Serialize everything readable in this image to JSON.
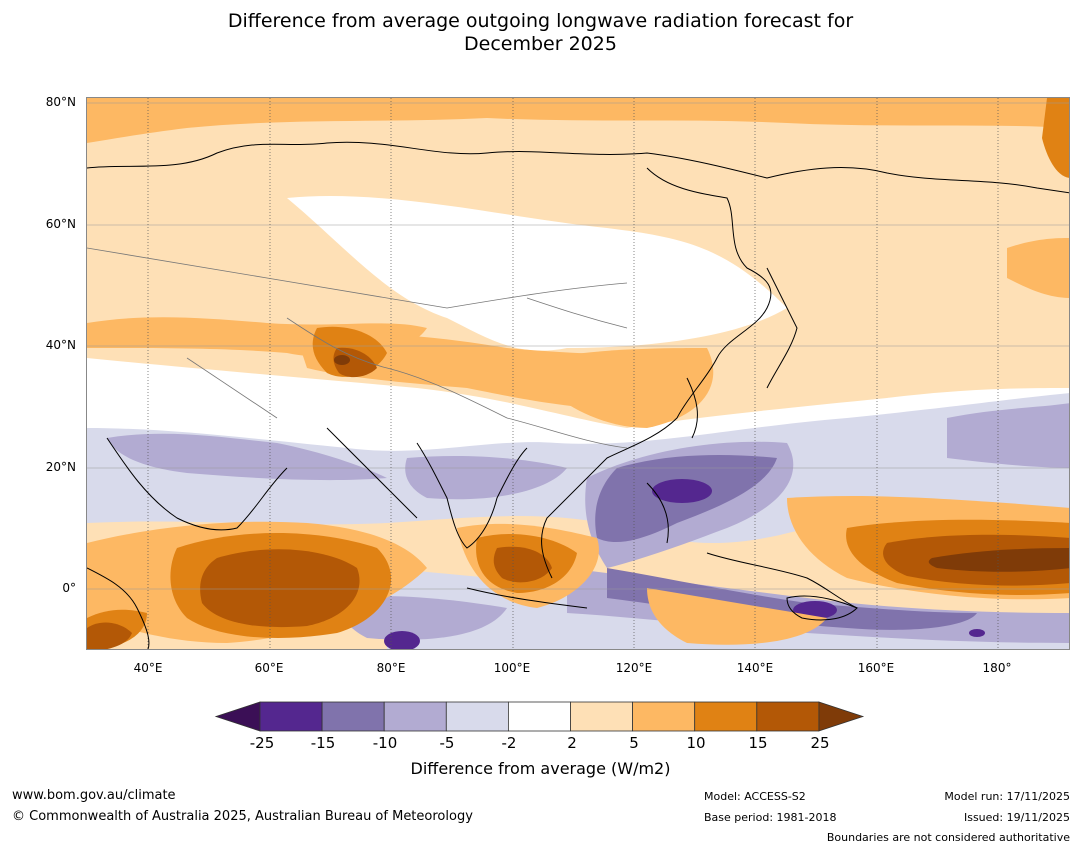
{
  "title": {
    "line1": "Difference from average outgoing longwave radiation forecast for",
    "line2": "December 2025"
  },
  "axes": {
    "lat_labels": [
      "80°N",
      "60°N",
      "40°N",
      "20°N",
      "0°"
    ],
    "lon_labels": [
      "40°E",
      "60°E",
      "80°E",
      "100°E",
      "120°E",
      "140°E",
      "160°E",
      "180°"
    ]
  },
  "colorbar": {
    "ticks": [
      "-25",
      "-15",
      "-10",
      "-5",
      "-2",
      "2",
      "5",
      "10",
      "15",
      "25"
    ],
    "colors": [
      "#3b0f56",
      "#54278f",
      "#8073ac",
      "#b2abd2",
      "#d8daeb",
      "#ffffff",
      "#fee0b6",
      "#fdb863",
      "#e08214",
      "#b35806",
      "#7f3b08"
    ],
    "label": "Difference from average (W/m2)"
  },
  "footer": {
    "url": "www.bom.gov.au/climate",
    "copyright": "© Commonwealth of Australia 2025, Australian Bureau of Meteorology",
    "model": "Model: ACCESS-S2",
    "base_period": "Base period: 1981-2018",
    "model_run": "Model run: 17/11/2025",
    "issued": "Issued: 19/11/2025",
    "disclaimer": "Boundaries are not considered authoritative"
  },
  "map": {
    "region": "Asia",
    "field": "OLR anomaly",
    "land_color": "#000000"
  }
}
